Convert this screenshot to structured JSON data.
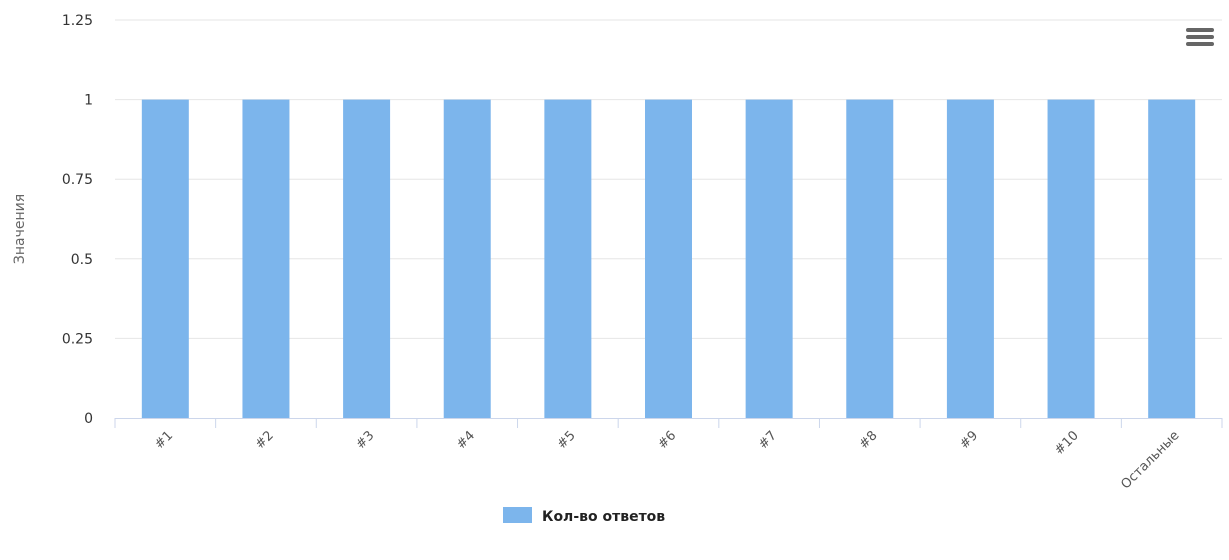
{
  "menu": {
    "icon": "hamburger-menu-icon"
  },
  "chart_data": {
    "type": "bar",
    "categories": [
      "#1",
      "#2",
      "#3",
      "#4",
      "#5",
      "#6",
      "#7",
      "#8",
      "#9",
      "#10",
      "Остальные"
    ],
    "series": [
      {
        "name": "Кол-во ответов",
        "values": [
          1,
          1,
          1,
          1,
          1,
          1,
          1,
          1,
          1,
          1,
          1
        ],
        "color": "#7cb5ec"
      }
    ],
    "ylabel": "Значения",
    "xlabel": "",
    "ylim": [
      0,
      1.25
    ],
    "yticks": [
      "0",
      "0.25",
      "0.5",
      "0.75",
      "1",
      "1.25"
    ],
    "yticks_values": [
      0,
      0.25,
      0.5,
      0.75,
      1,
      1.25
    ],
    "grid": true,
    "legend_position": "bottom-center"
  },
  "colors": {
    "grid": "#e6e6e6",
    "axis": "#ccd6eb",
    "bar": "#7cb5ec",
    "menu": "#666666"
  }
}
